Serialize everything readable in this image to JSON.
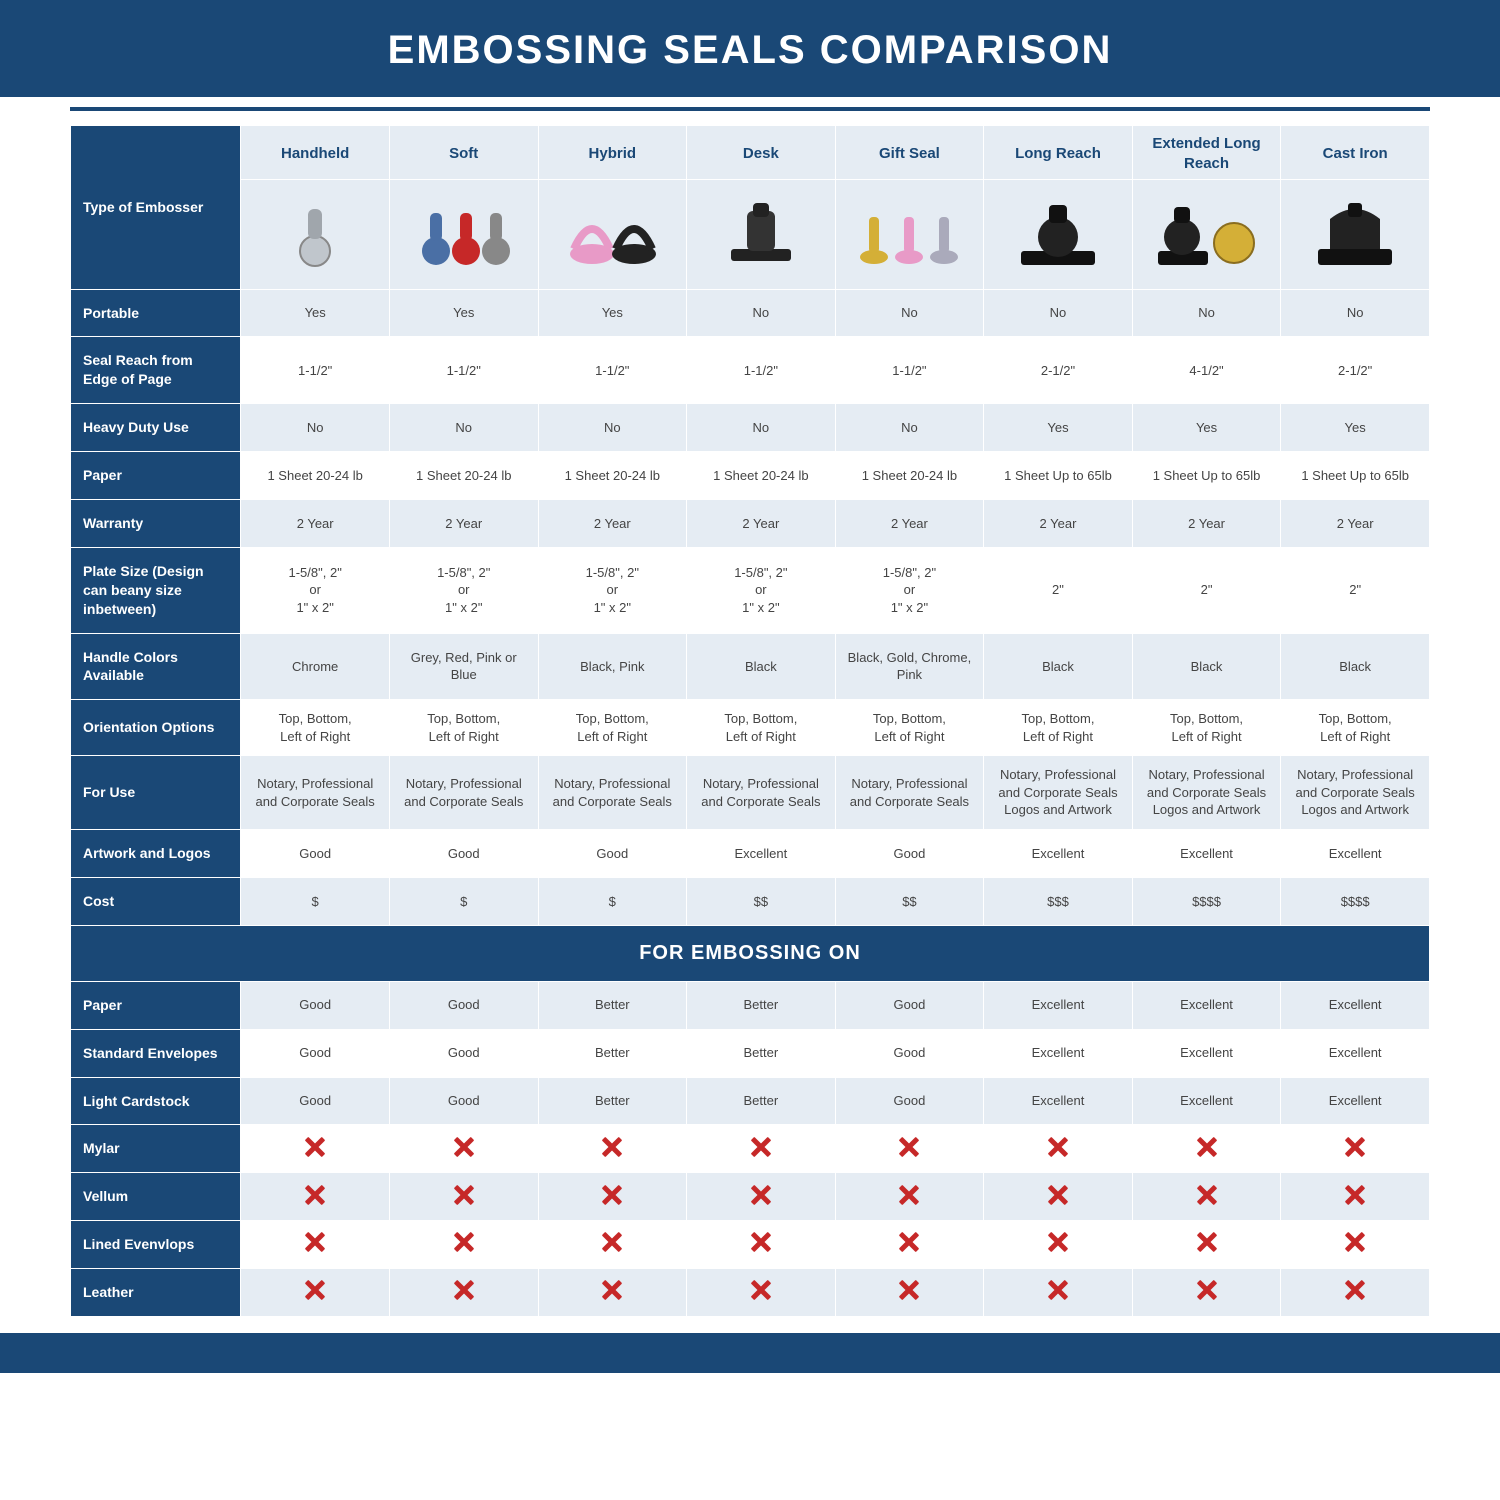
{
  "colors": {
    "primary": "#1a4876",
    "light_row": "#e5ecf3",
    "white_row": "#ffffff",
    "text_cell": "#444444",
    "x_color": "#c62828"
  },
  "title": "EMBOSSING SEALS COMPARISON",
  "columns": [
    "Handheld",
    "Soft",
    "Hybrid",
    "Desk",
    "Gift Seal",
    "Long Reach",
    "Extended Long Reach",
    "Cast Iron"
  ],
  "row_header_top": "Type of Embosser",
  "section_header": "FOR EMBOSSING ON",
  "rows_top": [
    {
      "label": "Portable",
      "values": [
        "Yes",
        "Yes",
        "Yes",
        "No",
        "No",
        "No",
        "No",
        "No"
      ]
    },
    {
      "label": "Seal Reach from Edge of Page",
      "values": [
        "1-1/2\"",
        "1-1/2\"",
        "1-1/2\"",
        "1-1/2\"",
        "1-1/2\"",
        "2-1/2\"",
        "4-1/2\"",
        "2-1/2\""
      ]
    },
    {
      "label": "Heavy Duty Use",
      "values": [
        "No",
        "No",
        "No",
        "No",
        "No",
        "Yes",
        "Yes",
        "Yes"
      ]
    },
    {
      "label": "Paper",
      "values": [
        "1 Sheet 20-24 lb",
        "1 Sheet 20-24 lb",
        "1 Sheet 20-24 lb",
        "1 Sheet 20-24 lb",
        "1 Sheet 20-24 lb",
        "1 Sheet Up to 65lb",
        "1 Sheet Up to 65lb",
        "1 Sheet Up to 65lb"
      ]
    },
    {
      "label": "Warranty",
      "values": [
        "2 Year",
        "2 Year",
        "2 Year",
        "2 Year",
        "2 Year",
        "2 Year",
        "2 Year",
        "2 Year"
      ]
    },
    {
      "label": "Plate Size (Design can beany size inbetween)",
      "values": [
        "1-5/8\", 2\"\nor\n1\" x 2\"",
        "1-5/8\", 2\"\nor\n1\" x 2\"",
        "1-5/8\", 2\"\nor\n1\" x 2\"",
        "1-5/8\", 2\"\nor\n1\" x 2\"",
        "1-5/8\", 2\"\nor\n1\" x 2\"",
        "2\"",
        "2\"",
        "2\""
      ]
    },
    {
      "label": "Handle Colors Available",
      "values": [
        "Chrome",
        "Grey, Red, Pink or Blue",
        "Black, Pink",
        "Black",
        "Black, Gold, Chrome, Pink",
        "Black",
        "Black",
        "Black"
      ]
    },
    {
      "label": "Orientation Options",
      "values": [
        "Top, Bottom,\nLeft of Right",
        "Top, Bottom,\nLeft of Right",
        "Top, Bottom,\nLeft of Right",
        "Top, Bottom,\nLeft of Right",
        "Top, Bottom,\nLeft of Right",
        "Top, Bottom,\nLeft of Right",
        "Top, Bottom,\nLeft of Right",
        "Top, Bottom,\nLeft of Right"
      ]
    },
    {
      "label": "For Use",
      "values": [
        "Notary, Professional and Corporate Seals",
        "Notary, Professional and Corporate Seals",
        "Notary, Professional and Corporate Seals",
        "Notary, Professional and Corporate Seals",
        "Notary, Professional and Corporate Seals",
        "Notary, Professional and Corporate Seals Logos and Artwork",
        "Notary, Professional and Corporate Seals Logos and Artwork",
        "Notary, Professional and Corporate Seals Logos and Artwork"
      ]
    },
    {
      "label": "Artwork and Logos",
      "values": [
        "Good",
        "Good",
        "Good",
        "Excellent",
        "Good",
        "Excellent",
        "Excellent",
        "Excellent"
      ]
    },
    {
      "label": "Cost",
      "values": [
        "$",
        "$",
        "$",
        "$$",
        "$$",
        "$$$",
        "$$$$",
        "$$$$"
      ]
    }
  ],
  "rows_bottom": [
    {
      "label": "Paper",
      "values": [
        "Good",
        "Good",
        "Better",
        "Better",
        "Good",
        "Excellent",
        "Excellent",
        "Excellent"
      ]
    },
    {
      "label": "Standard Envelopes",
      "values": [
        "Good",
        "Good",
        "Better",
        "Better",
        "Good",
        "Excellent",
        "Excellent",
        "Excellent"
      ]
    },
    {
      "label": "Light Cardstock",
      "values": [
        "Good",
        "Good",
        "Better",
        "Better",
        "Good",
        "Excellent",
        "Excellent",
        "Excellent"
      ]
    },
    {
      "label": "Mylar",
      "values": [
        "X",
        "X",
        "X",
        "X",
        "X",
        "X",
        "X",
        "X"
      ]
    },
    {
      "label": "Vellum",
      "values": [
        "X",
        "X",
        "X",
        "X",
        "X",
        "X",
        "X",
        "X"
      ]
    },
    {
      "label": "Lined Evenvlops",
      "values": [
        "X",
        "X",
        "X",
        "X",
        "X",
        "X",
        "X",
        "X"
      ]
    },
    {
      "label": "Leather",
      "values": [
        "X",
        "X",
        "X",
        "X",
        "X",
        "X",
        "X",
        "X"
      ]
    }
  ],
  "table_style": {
    "header_bg": "#e5ecf3",
    "label_bg": "#1a4876",
    "alt_row_bg_a": "#e5ecf3",
    "alt_row_bg_b": "#ffffff",
    "border_color": "#ffffff",
    "header_font_size": 15,
    "cell_font_size": 13,
    "title_font_size": 40,
    "section_font_size": 20
  }
}
